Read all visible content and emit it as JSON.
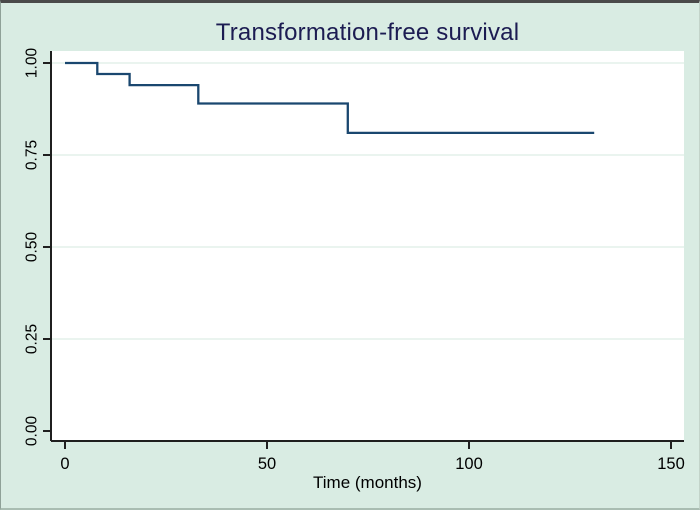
{
  "figure": {
    "title": "Transformation-free survival",
    "x_axis_title": "Time (months)"
  },
  "chart_data": {
    "type": "line",
    "subtype": "kaplan-meier-step",
    "title": "Transformation-free survival",
    "xlabel": "Time (months)",
    "ylabel": "",
    "xlim": [
      0,
      150
    ],
    "ylim": [
      0,
      1
    ],
    "xtick_values": [
      0,
      50,
      100,
      150
    ],
    "xtick_labels": [
      "0",
      "50",
      "100",
      "150"
    ],
    "ytick_values": [
      0,
      0.25,
      0.5,
      0.75,
      1.0
    ],
    "ytick_labels": [
      "0.00",
      "0.25",
      "0.50",
      "0.75",
      "1.00"
    ],
    "gridline_values": [
      0.25,
      0.5,
      0.75,
      1.0
    ],
    "grid": "horizontal",
    "legend": "none",
    "steps": [
      [
        0,
        1.0
      ],
      [
        8,
        1.0
      ],
      [
        8,
        0.97
      ],
      [
        16,
        0.97
      ],
      [
        16,
        0.94
      ],
      [
        33,
        0.94
      ],
      [
        33,
        0.89
      ],
      [
        70,
        0.89
      ],
      [
        70,
        0.81
      ],
      [
        131,
        0.81
      ]
    ],
    "colors": {
      "line": "#1a476f",
      "background": "#d9ece3",
      "plot_background": "#ffffff",
      "gridline": "#e4f0ea",
      "axis": "#1f1f1f",
      "title": "#1c1c52",
      "tick_label": "#000000"
    }
  }
}
